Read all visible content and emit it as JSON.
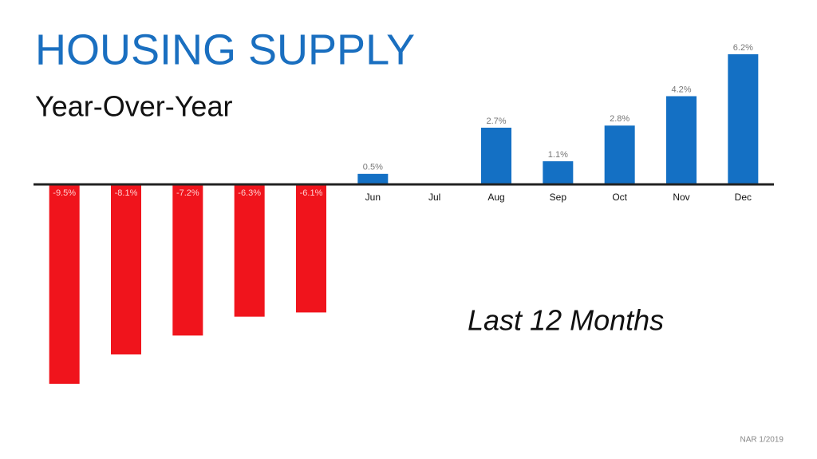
{
  "chart_data": {
    "type": "bar",
    "title": "HOUSING SUPPLY",
    "subtitle": "Year-Over-Year",
    "annotation": "Last 12 Months",
    "source": "NAR 1/2019",
    "categories": [
      null,
      null,
      null,
      null,
      null,
      "Jun",
      "Jul",
      "Aug",
      "Sep",
      "Oct",
      "Nov",
      "Dec"
    ],
    "values": [
      -9.5,
      -8.1,
      -7.2,
      -6.3,
      -6.1,
      0.5,
      null,
      2.7,
      1.1,
      2.8,
      4.2,
      6.2
    ],
    "value_labels": [
      "-9.5%",
      "-8.1%",
      "-7.2%",
      "-6.3%",
      "-6.1%",
      "0.5%",
      null,
      "2.7%",
      "1.1%",
      "2.8%",
      "4.2%",
      "6.2%"
    ],
    "colors": {
      "positive": "#1470c4",
      "negative": "#f0141c"
    },
    "ylim": [
      -10,
      6.5
    ]
  }
}
